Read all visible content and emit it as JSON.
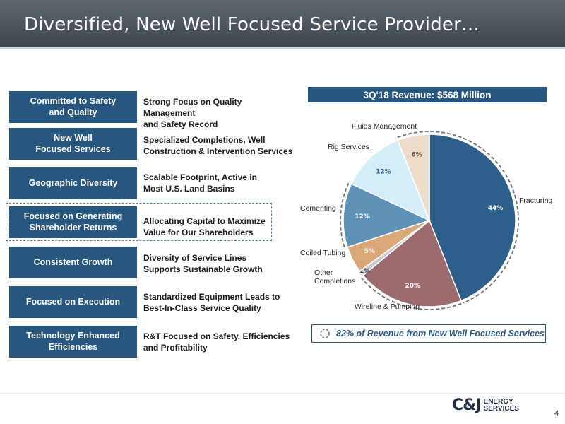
{
  "header": {
    "title": "Diversified, New Well Focused Service Provider…"
  },
  "rows": [
    {
      "label": "Committed to Safety\nand Quality",
      "desc": "Strong Focus on Quality Management\nand Safety Record"
    },
    {
      "label": "New Well\nFocused Services",
      "desc": "Specialized Completions, Well\nConstruction & Intervention Services"
    },
    {
      "label": "Geographic Diversity",
      "desc": "Scalable Footprint, Active in\nMost U.S. Land Basins"
    },
    {
      "label": "Focused on Generating\nShareholder Returns",
      "desc": "Allocating Capital to Maximize\nValue for Our Shareholders"
    },
    {
      "label": "Consistent Growth",
      "desc": "Diversity of Service Lines\nSupports Sustainable Growth"
    },
    {
      "label": "Focused on Execution",
      "desc": "Standardized Equipment Leads to\nBest-In-Class Service Quality"
    },
    {
      "label": "Technology Enhanced\nEfficiencies",
      "desc": "R&T Focused on Safety, Efficiencies\nand Profitability"
    }
  ],
  "chart_data": {
    "type": "pie",
    "title": "3Q'18 Revenue: $568 Million",
    "slices": [
      {
        "name": "Fracturing",
        "value": 44,
        "label": "44%",
        "color": "#2c5f89",
        "new_well": true
      },
      {
        "name": "Wireline & Pumping",
        "value": 20,
        "label": "20%",
        "color": "#9b6b6f",
        "new_well": true
      },
      {
        "name": "Other\nCompletions",
        "value": 1,
        "label": "1%",
        "color": "#c8ccd0",
        "new_well": false
      },
      {
        "name": "Coiled Tubing",
        "value": 5,
        "label": "5%",
        "color": "#d9a878",
        "new_well": false
      },
      {
        "name": "Cementing",
        "value": 12,
        "label": "12%",
        "color": "#5e92b7",
        "new_well": true
      },
      {
        "name": "Rig Services",
        "value": 12,
        "label": "12%",
        "color": "#d4eef9",
        "new_well": false
      },
      {
        "name": "Fluids Management",
        "value": 6,
        "label": "6%",
        "color": "#ecdccb",
        "new_well": true
      }
    ]
  },
  "note": {
    "text": "82% of Revenue from New Well Focused Services"
  },
  "logo": {
    "mark": "C&J",
    "word": "ENERGY\nSERVICES"
  },
  "page_number": "4"
}
